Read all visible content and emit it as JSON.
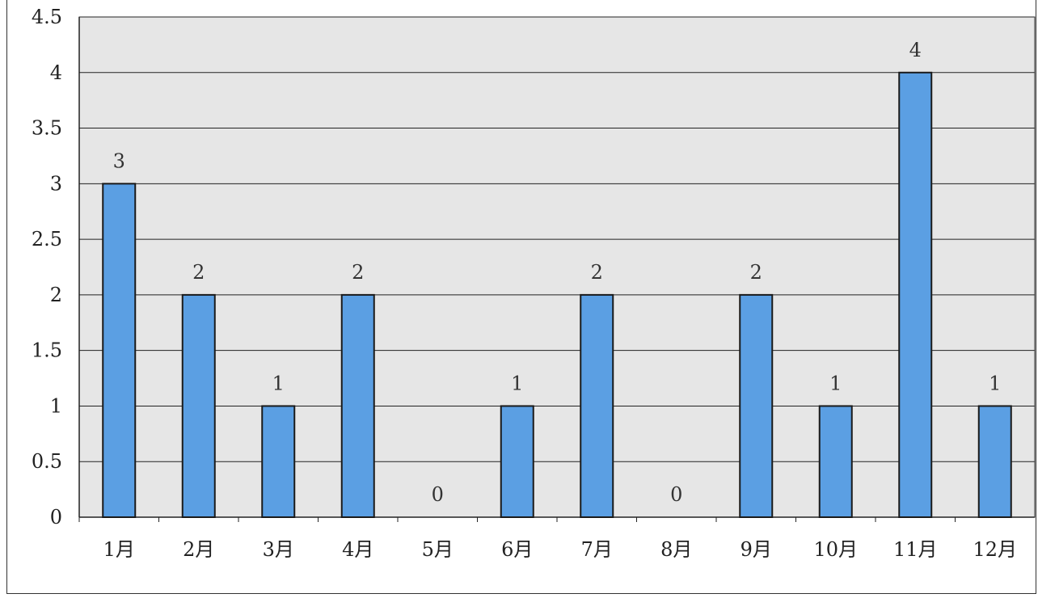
{
  "chart_data": {
    "type": "bar",
    "title": "",
    "xlabel": "",
    "ylabel": "",
    "categories": [
      "1月",
      "2月",
      "3月",
      "4月",
      "5月",
      "6月",
      "7月",
      "8月",
      "9月",
      "10月",
      "11月",
      "12月"
    ],
    "values": [
      3,
      2,
      1,
      2,
      0,
      1,
      2,
      0,
      2,
      1,
      4,
      1
    ],
    "data_labels": [
      "3",
      "2",
      "1",
      "2",
      "0",
      "1",
      "2",
      "0",
      "2",
      "1",
      "4",
      "1"
    ],
    "ylim": [
      0,
      4.5
    ],
    "yticks": [
      "0",
      "0.5",
      "1",
      "1.5",
      "2",
      "2.5",
      "3",
      "3.5",
      "4",
      "4.5"
    ],
    "grid": true,
    "legend": "none",
    "colors": {
      "bar_fill": "#5b9fe3",
      "bar_stroke": "#1a1a1a",
      "plot_background": "#e6e6e6",
      "grid": "#222222"
    }
  }
}
